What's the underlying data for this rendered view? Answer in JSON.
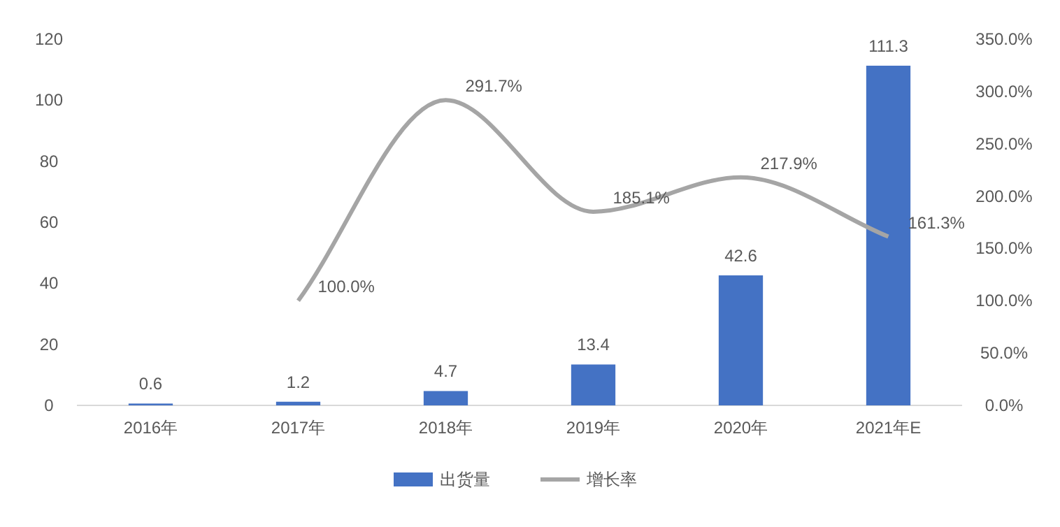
{
  "chart_data": {
    "type": "bar",
    "categories": [
      "2016年",
      "2017年",
      "2018年",
      "2019年",
      "2020年",
      "2021年E"
    ],
    "series": [
      {
        "name": "出货量",
        "color": "#4472c4",
        "values": [
          0.6,
          1.2,
          4.7,
          13.4,
          42.6,
          111.3
        ],
        "value_labels": [
          "0.6",
          "1.2",
          "4.7",
          "13.4",
          "42.6",
          "111.3"
        ]
      },
      {
        "name": "增长率",
        "type": "line",
        "axis": "y2",
        "color": "#a5a5a5",
        "values": [
          null,
          100.0,
          291.7,
          185.1,
          217.9,
          161.3
        ],
        "value_labels": [
          null,
          "100.0%",
          "291.7%",
          "185.1%",
          "217.9%",
          "161.3%"
        ]
      }
    ],
    "ylim": [
      0,
      120
    ],
    "yticks": [
      0,
      20,
      40,
      60,
      80,
      100,
      120
    ],
    "y2lim": [
      0,
      350
    ],
    "y2ticks": [
      {
        "value": 0,
        "label": "0.0%"
      },
      {
        "value": 50,
        "label": "50.0%"
      },
      {
        "value": 100,
        "label": "100.0%"
      },
      {
        "value": 150,
        "label": "150.0%"
      },
      {
        "value": 200,
        "label": "200.0%"
      },
      {
        "value": 250,
        "label": "250.0%"
      },
      {
        "value": 300,
        "label": "300.0%"
      },
      {
        "value": 350,
        "label": "350.0%"
      }
    ],
    "legend": "bottom"
  }
}
